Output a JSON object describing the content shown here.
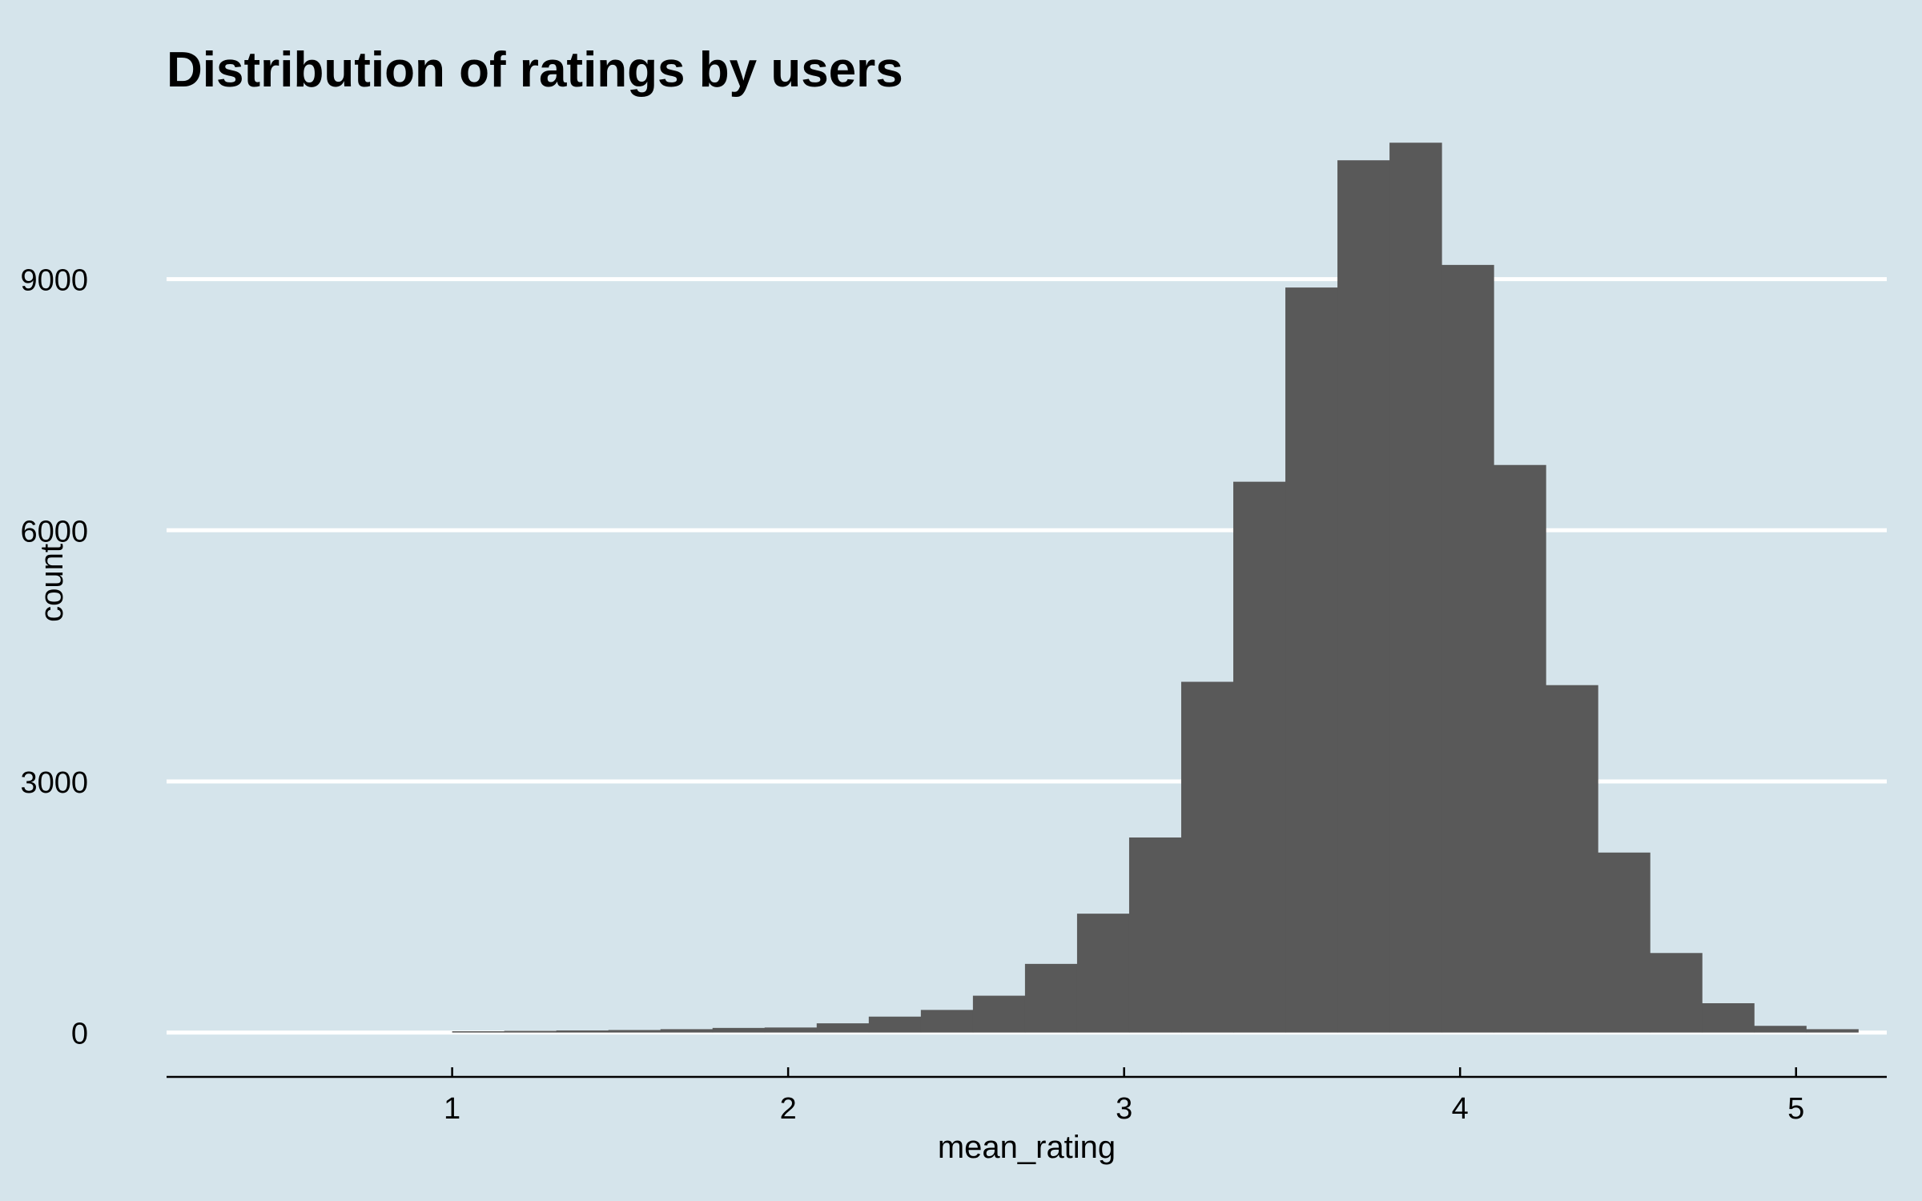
{
  "chart_data": {
    "type": "bar",
    "title": "Distribution of ratings by users",
    "xlabel": "mean_rating",
    "ylabel": "count",
    "xlim": [
      0.15,
      5.27
    ],
    "ylim": [
      -530,
      10900
    ],
    "x_ticks": [
      1,
      2,
      3,
      4,
      5
    ],
    "y_ticks": [
      0,
      3000,
      6000,
      9000
    ],
    "grid": "horizontal-major",
    "bin_width": 0.155,
    "bin_start": 1.0,
    "bars_color": "#595959",
    "background": "#d5e4eb",
    "gridline_color": "#ffffff",
    "counts": [
      15,
      20,
      25,
      30,
      40,
      55,
      60,
      110,
      190,
      270,
      440,
      820,
      1420,
      2330,
      4190,
      6580,
      8900,
      10420,
      10630,
      9170,
      6780,
      4150,
      2150,
      950,
      350,
      80,
      40
    ]
  }
}
